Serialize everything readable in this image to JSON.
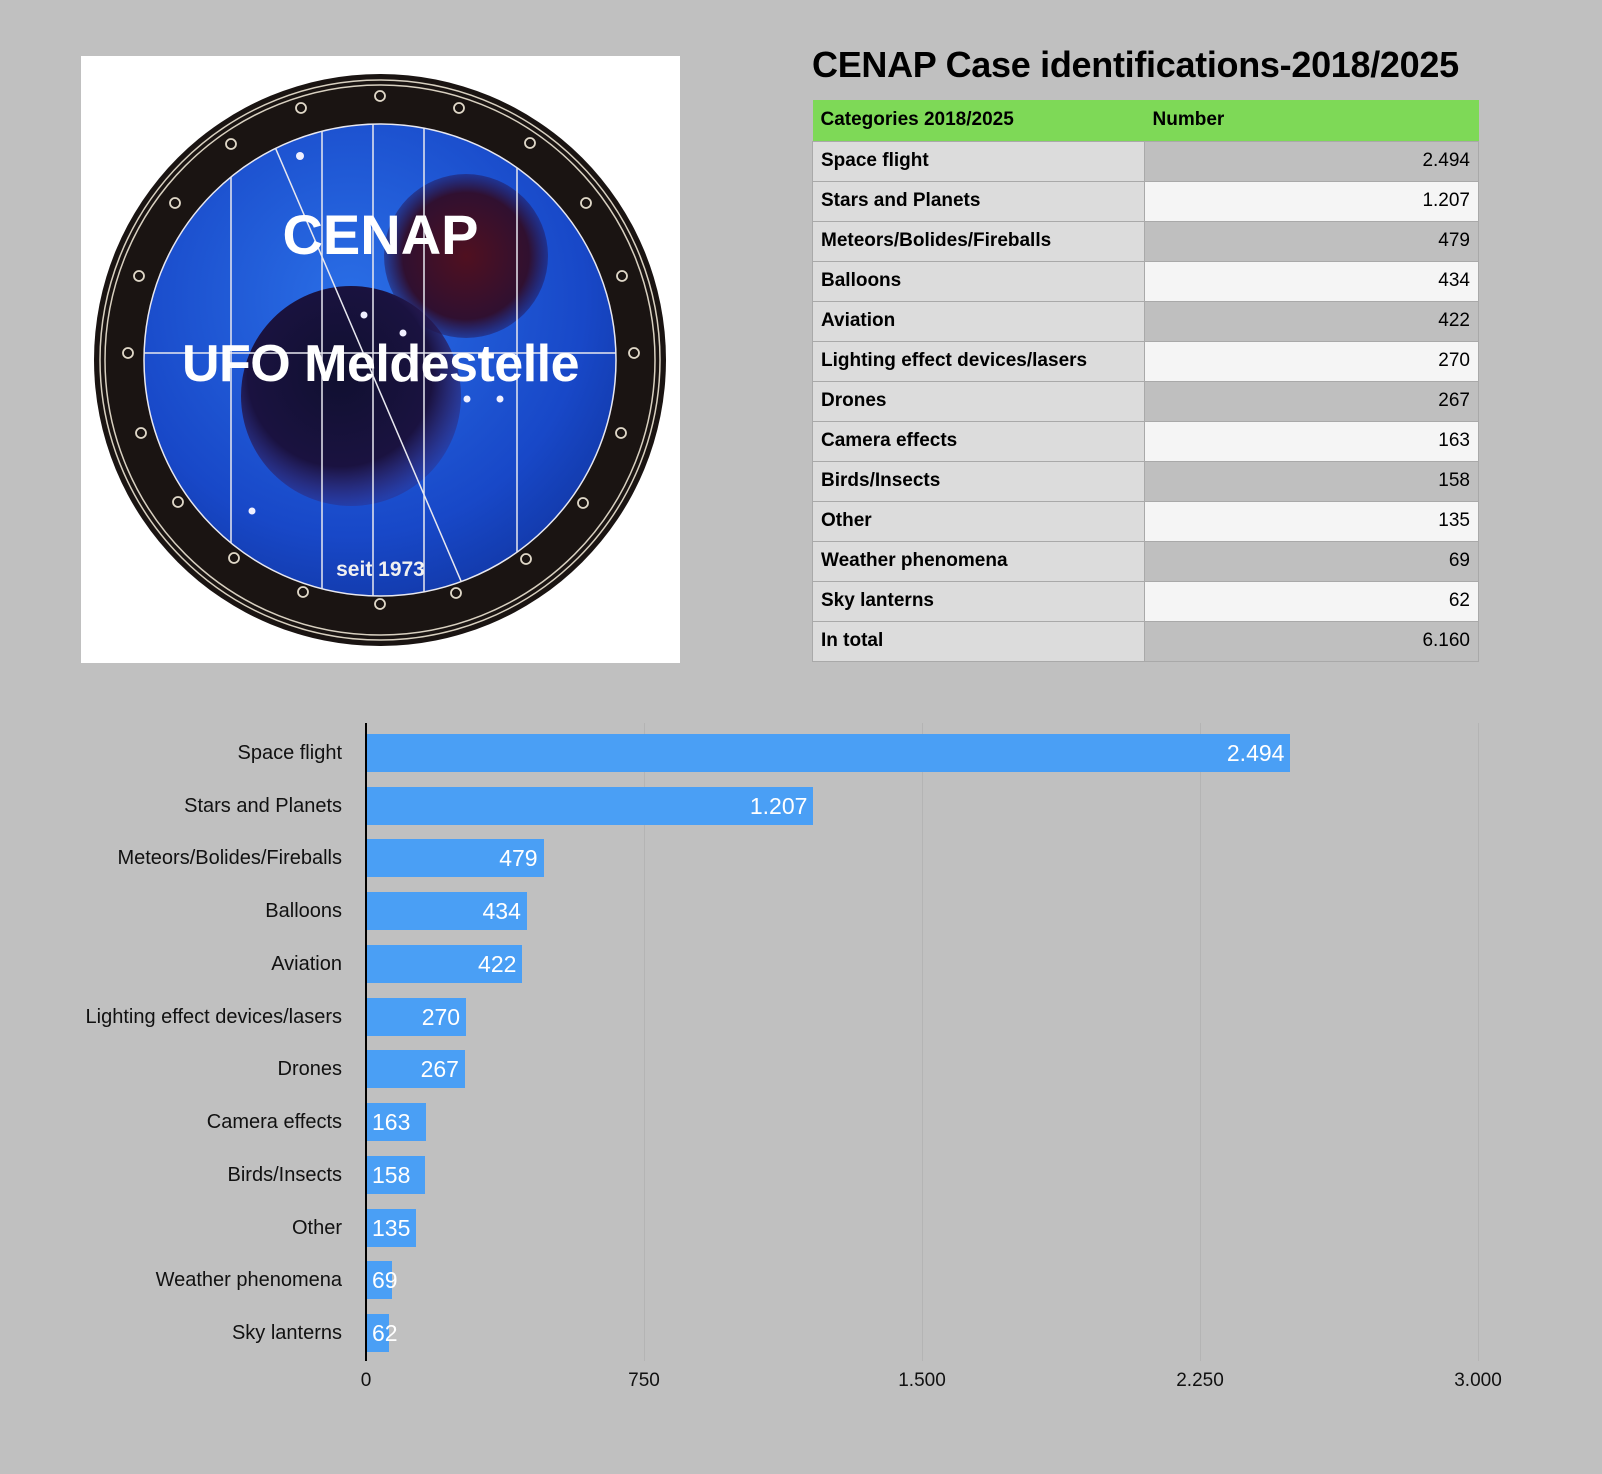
{
  "logo": {
    "line1": "CENAP",
    "line2": "UFO Meldestelle",
    "line3": "seit 1973"
  },
  "title": "CENAP Case identifications-2018/2025",
  "table": {
    "headers": [
      "Categories 2018/2025",
      "Number"
    ],
    "rows": [
      {
        "category": "Space flight",
        "number": "2.494"
      },
      {
        "category": "Stars and Planets",
        "number": "1.207"
      },
      {
        "category": "Meteors/Bolides/Fireballs",
        "number": "479"
      },
      {
        "category": "Balloons",
        "number": "434"
      },
      {
        "category": "Aviation",
        "number": "422"
      },
      {
        "category": "Lighting effect devices/lasers",
        "number": "270"
      },
      {
        "category": "Drones",
        "number": "267"
      },
      {
        "category": "Camera effects",
        "number": "163"
      },
      {
        "category": "Birds/Insects",
        "number": "158"
      },
      {
        "category": "Other",
        "number": "135"
      },
      {
        "category": "Weather phenomena",
        "number": "69"
      },
      {
        "category": "Sky lanterns",
        "number": "62"
      },
      {
        "category": "In total",
        "number": "6.160"
      }
    ],
    "colors": {
      "header": "#7ed957"
    }
  },
  "chart_data": {
    "type": "bar",
    "orientation": "horizontal",
    "title": "",
    "xlabel": "",
    "ylabel": "",
    "categories": [
      "Space flight",
      "Stars and Planets",
      "Meteors/Bolides/Fireballs",
      "Balloons",
      "Aviation",
      "Lighting effect devices/lasers",
      "Drones",
      "Camera effects",
      "Birds/Insects",
      "Other",
      "Weather phenomena",
      "Sky lanterns"
    ],
    "values": [
      2494,
      1207,
      479,
      434,
      422,
      270,
      267,
      163,
      158,
      135,
      69,
      62
    ],
    "value_labels": [
      "2.494",
      "1.207",
      "479",
      "434",
      "422",
      "270",
      "267",
      "163",
      "158",
      "135",
      "69",
      "62"
    ],
    "xlim": [
      0,
      3000
    ],
    "x_ticks": [
      0,
      750,
      1500,
      2250,
      3000
    ],
    "x_tick_labels": [
      "0",
      "750",
      "1.500",
      "2.250",
      "3.000"
    ],
    "grid": true,
    "legend": null,
    "bar_color": "#4a9ff5"
  }
}
